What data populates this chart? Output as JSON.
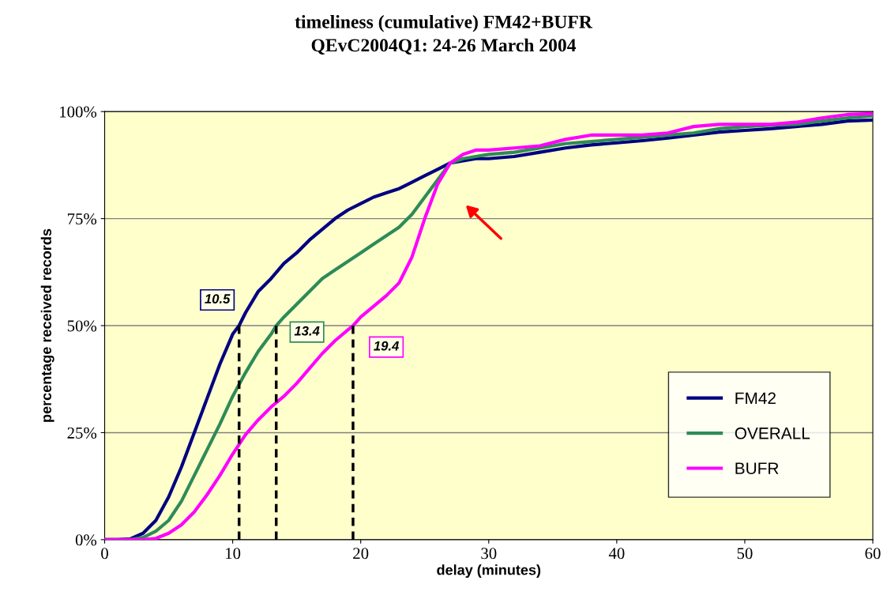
{
  "chart_data": {
    "type": "line",
    "title": "timeliness (cumulative) FM42+BUFR\nQEvC2004Q1: 24-26 March 2004",
    "xlabel": "delay (minutes)",
    "ylabel": "percentage received records",
    "xlim": [
      0,
      60
    ],
    "xticks": [
      0,
      10,
      20,
      30,
      40,
      50,
      60
    ],
    "ylim": [
      0,
      100
    ],
    "yticks": [
      {
        "value": 0,
        "label": "0%"
      },
      {
        "value": 25,
        "label": "25%"
      },
      {
        "value": 50,
        "label": "50%"
      },
      {
        "value": 75,
        "label": "75%"
      },
      {
        "value": 100,
        "label": "100%"
      }
    ],
    "grid": "y",
    "legend": "bottom right",
    "marker": "none",
    "line_style": "solid",
    "series": [
      {
        "name": "FM42",
        "color": "#000080",
        "x": [
          0,
          1,
          2,
          3,
          4,
          5,
          6,
          7,
          8,
          9,
          10,
          10.5,
          11,
          12,
          13,
          14,
          15,
          16,
          17,
          18,
          19,
          20,
          21,
          22,
          23,
          24,
          25,
          26,
          27,
          28,
          29,
          30,
          32,
          34,
          36,
          38,
          40,
          42,
          44,
          46,
          48,
          50,
          52,
          54,
          56,
          58,
          60
        ],
        "values": [
          0,
          0,
          0.2,
          1.5,
          4.5,
          10,
          17,
          25,
          33,
          41,
          48,
          50,
          53,
          58,
          61,
          64.5,
          67,
          70,
          72.5,
          75,
          77,
          78.5,
          80,
          81,
          82,
          83.5,
          85,
          86.5,
          88,
          88.5,
          89,
          89,
          89.5,
          90.5,
          91.5,
          92.2,
          92.7,
          93.2,
          93.8,
          94.5,
          95.2,
          95.6,
          96,
          96.5,
          97,
          97.8,
          98
        ]
      },
      {
        "name": "OVERALL",
        "color": "#2e8b57",
        "x": [
          0,
          2,
          3,
          4,
          5,
          6,
          7,
          8,
          9,
          10,
          11,
          12,
          13,
          13.4,
          14,
          15,
          16,
          17,
          18,
          19,
          20,
          21,
          22,
          23,
          24,
          25,
          26,
          27,
          28,
          29,
          30,
          32,
          34,
          36,
          38,
          40,
          42,
          44,
          46,
          48,
          50,
          52,
          54,
          56,
          58,
          60
        ],
        "values": [
          0,
          0,
          0.5,
          2,
          4.5,
          9,
          15,
          21,
          27,
          33.5,
          39,
          44,
          48,
          50,
          52,
          55,
          58,
          61,
          63,
          65,
          67,
          69,
          71,
          73,
          76,
          80,
          84,
          88,
          89,
          89.5,
          90,
          90.5,
          91.5,
          92.5,
          93,
          93.5,
          94,
          94.5,
          95,
          96,
          96.5,
          96.8,
          97,
          97.8,
          98.5,
          99
        ]
      },
      {
        "name": "BUFR",
        "color": "#ff00ff",
        "x": [
          0,
          3,
          4,
          5,
          6,
          7,
          8,
          9,
          10,
          11,
          12,
          13,
          14,
          15,
          16,
          17,
          18,
          19,
          19.4,
          20,
          21,
          22,
          23,
          24,
          25,
          26,
          27,
          28,
          29,
          30,
          32,
          34,
          36,
          38,
          40,
          42,
          44,
          46,
          48,
          50,
          52,
          54,
          56,
          58,
          60
        ],
        "values": [
          0,
          0,
          0.3,
          1.5,
          3.5,
          6.5,
          10.5,
          15,
          20,
          24.5,
          28,
          31,
          33.5,
          36.5,
          40,
          43.5,
          46.5,
          49,
          50,
          52,
          54.5,
          57,
          60,
          66,
          75,
          83,
          88,
          90,
          91,
          91,
          91.5,
          92,
          93.5,
          94.5,
          94.5,
          94.5,
          95,
          96.5,
          97,
          97,
          97,
          97.5,
          98.5,
          99.3,
          99.5
        ]
      },
      {
        "color": "#000000",
        "line_style": "dashed",
        "x": [
          10.5,
          10.5
        ],
        "values": [
          0,
          50
        ]
      },
      {
        "color": "#000000",
        "line_style": "dashed",
        "x": [
          13.4,
          13.4
        ],
        "values": [
          0,
          50
        ]
      },
      {
        "color": "#000000",
        "line_style": "dashed",
        "x": [
          19.4,
          19.4
        ],
        "values": [
          0,
          50
        ]
      }
    ],
    "annotations": [
      {
        "text": "10.5",
        "x": 10.5,
        "y": 50
      },
      {
        "text": "13.4",
        "x": 13.4,
        "y": 50
      },
      {
        "text": "19.4",
        "x": 19.4,
        "y": 50
      }
    ]
  }
}
